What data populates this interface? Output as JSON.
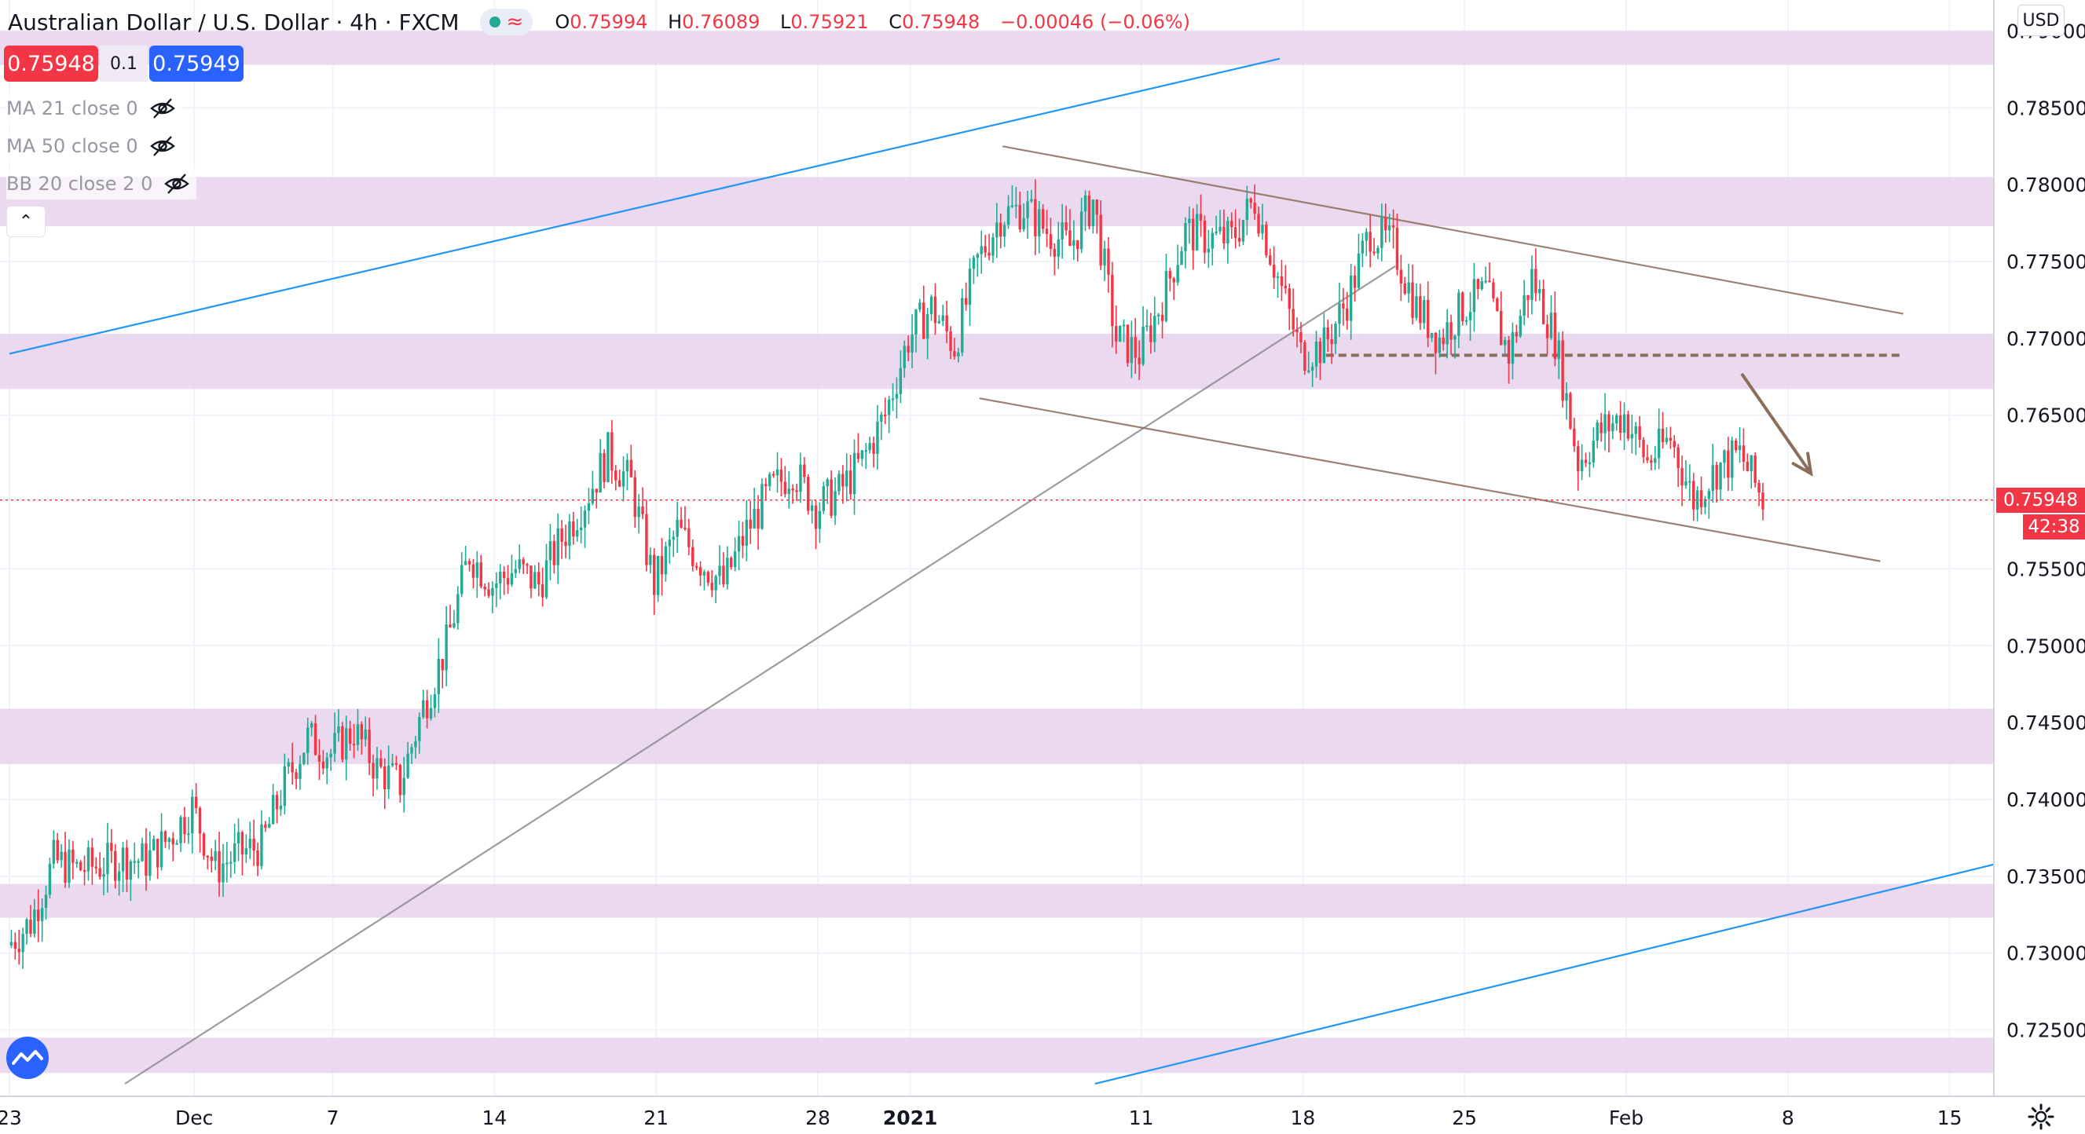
{
  "header": {
    "symbol": "Australian Dollar / U.S. Dollar",
    "interval": "4h",
    "source": "FXCM",
    "separator": "·",
    "open_label": "O",
    "open": "0.75994",
    "high_label": "H",
    "high": "0.76089",
    "low_label": "L",
    "low": "0.75921",
    "close_label": "C",
    "close": "0.75948",
    "change": "−0.00046 (−0.06%)"
  },
  "trade": {
    "sell_price": "0.75948",
    "spread": "0.1",
    "buy_price": "0.75949"
  },
  "indicators": [
    {
      "label": "MA 21 close 0"
    },
    {
      "label": "MA 50 close 0"
    },
    {
      "label": "BB 20 close 2 0"
    }
  ],
  "collapse_icon": "chevron-up-icon",
  "currency_button": "USD",
  "last_price_label": "0.75948",
  "countdown": "42:38",
  "colors": {
    "up": "#22ab94",
    "down": "#f23645",
    "zone": "#e6d2ec",
    "trendline_blue": "#2196f3",
    "trendline_gray": "#8c8c8c",
    "brown": "#8b6d5c",
    "grid": "#f0f3fa"
  },
  "chart_data": {
    "type": "candlestick",
    "title": "Australian Dollar / U.S. Dollar",
    "timeframe": "4h",
    "y_ticks": [
      0.79,
      0.785,
      0.78,
      0.775,
      0.77,
      0.765,
      0.7595,
      0.755,
      0.75,
      0.745,
      0.74,
      0.735,
      0.73,
      0.725
    ],
    "y_tick_labels": [
      "0.79000",
      "0.78500",
      "0.78000",
      "0.77500",
      "0.77000",
      "0.76500",
      "0.75948",
      "0.75500",
      "0.75000",
      "0.74500",
      "0.74000",
      "0.73500",
      "0.73000",
      "0.72500"
    ],
    "ylim": [
      0.7215,
      0.7915
    ],
    "x_ticks": [
      {
        "label": "23",
        "bold": false,
        "day": 0
      },
      {
        "label": "Dec",
        "bold": false,
        "day": 8
      },
      {
        "label": "7",
        "bold": false,
        "day": 14
      },
      {
        "label": "14",
        "bold": false,
        "day": 21
      },
      {
        "label": "21",
        "bold": false,
        "day": 28
      },
      {
        "label": "28",
        "bold": false,
        "day": 35
      },
      {
        "label": "2021",
        "bold": true,
        "day": 39
      },
      {
        "label": "11",
        "bold": false,
        "day": 49
      },
      {
        "label": "18",
        "bold": false,
        "day": 56
      },
      {
        "label": "25",
        "bold": false,
        "day": 63
      },
      {
        "label": "Feb",
        "bold": false,
        "day": 70
      },
      {
        "label": "8",
        "bold": false,
        "day": 77
      },
      {
        "label": "15",
        "bold": false,
        "day": 84
      }
    ],
    "zones": [
      [
        0.7878,
        0.79
      ],
      [
        0.7773,
        0.7805
      ],
      [
        0.7667,
        0.7703
      ],
      [
        0.7423,
        0.7459
      ],
      [
        0.7323,
        0.7345
      ],
      [
        0.7222,
        0.7245
      ]
    ],
    "trendlines": [
      {
        "kind": "blue-upper",
        "from": [
          0,
          0.769
        ],
        "to": [
          55,
          0.7882
        ]
      },
      {
        "kind": "blue-lower",
        "from": [
          47,
          0.7215
        ],
        "to": [
          86,
          0.7358
        ]
      },
      {
        "kind": "gray-support",
        "from": [
          5,
          0.7215
        ],
        "to": [
          60,
          0.7747
        ]
      },
      {
        "kind": "channel-top",
        "from": [
          43,
          0.7825
        ],
        "to": [
          82,
          0.7716
        ]
      },
      {
        "kind": "channel-bottom",
        "from": [
          42,
          0.7661
        ],
        "to": [
          81,
          0.7555
        ]
      }
    ],
    "resistance_dashed": {
      "from": [
        57,
        0.7689
      ],
      "to": [
        82,
        0.7689
      ]
    },
    "arrow": {
      "from": [
        75,
        0.7677
      ],
      "to": [
        78,
        0.7612
      ]
    },
    "last_price": 0.75948,
    "ohlc_points": [
      [
        0,
        0.7305
      ],
      [
        1,
        0.732
      ],
      [
        2,
        0.736
      ],
      [
        3,
        0.7355
      ],
      [
        4,
        0.7357
      ],
      [
        5,
        0.7362
      ],
      [
        6,
        0.736
      ],
      [
        7,
        0.7375
      ],
      [
        8,
        0.7395
      ],
      [
        9,
        0.7355
      ],
      [
        10,
        0.7365
      ],
      [
        11,
        0.737
      ],
      [
        12,
        0.741
      ],
      [
        13,
        0.744
      ],
      [
        14,
        0.743
      ],
      [
        15,
        0.7445
      ],
      [
        16,
        0.742
      ],
      [
        17,
        0.741
      ],
      [
        18,
        0.746
      ],
      [
        19,
        0.75
      ],
      [
        20,
        0.756
      ],
      [
        21,
        0.754
      ],
      [
        22,
        0.755
      ],
      [
        23,
        0.754
      ],
      [
        24,
        0.757
      ],
      [
        25,
        0.7595
      ],
      [
        26,
        0.7625
      ],
      [
        27,
        0.7605
      ],
      [
        28,
        0.754
      ],
      [
        29,
        0.7575
      ],
      [
        30,
        0.7555
      ],
      [
        31,
        0.754
      ],
      [
        32,
        0.7575
      ],
      [
        33,
        0.76
      ],
      [
        34,
        0.7615
      ],
      [
        35,
        0.759
      ],
      [
        36,
        0.76
      ],
      [
        37,
        0.762
      ],
      [
        38,
        0.765
      ],
      [
        39,
        0.77
      ],
      [
        40,
        0.772
      ],
      [
        41,
        0.7695
      ],
      [
        42,
        0.775
      ],
      [
        43,
        0.778
      ],
      [
        44,
        0.7785
      ],
      [
        45,
        0.777
      ],
      [
        46,
        0.776
      ],
      [
        47,
        0.779
      ],
      [
        48,
        0.77
      ],
      [
        49,
        0.769
      ],
      [
        50,
        0.7725
      ],
      [
        51,
        0.777
      ],
      [
        52,
        0.7765
      ],
      [
        53,
        0.7765
      ],
      [
        54,
        0.779
      ],
      [
        55,
        0.774
      ],
      [
        56,
        0.769
      ],
      [
        57,
        0.7695
      ],
      [
        58,
        0.7725
      ],
      [
        59,
        0.777
      ],
      [
        60,
        0.776
      ],
      [
        61,
        0.772
      ],
      [
        62,
        0.77
      ],
      [
        63,
        0.772
      ],
      [
        64,
        0.773
      ],
      [
        65,
        0.769
      ],
      [
        66,
        0.774
      ],
      [
        67,
        0.77
      ],
      [
        68,
        0.762
      ],
      [
        69,
        0.764
      ],
      [
        70,
        0.765
      ],
      [
        71,
        0.762
      ],
      [
        72,
        0.7635
      ],
      [
        73,
        0.7595
      ],
      [
        74,
        0.7615
      ],
      [
        75,
        0.7625
      ],
      [
        76,
        0.7595
      ]
    ]
  }
}
